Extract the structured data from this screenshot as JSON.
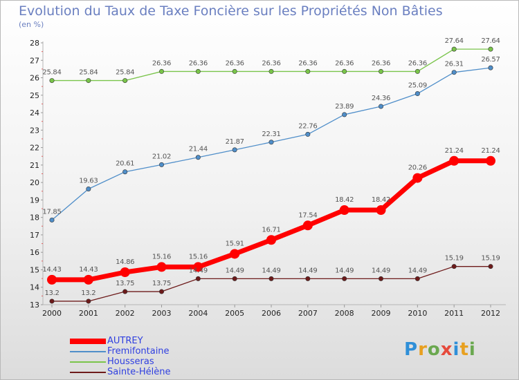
{
  "header": {
    "title": "Evolution du Taux de Taxe Foncière sur les Propriétés Non Bâties",
    "unit": "(en %)"
  },
  "brand": {
    "text": "Proxiti",
    "letter_colors": [
      "#2f8fd8",
      "#e8a020",
      "#6aa84f",
      "#e64a3c",
      "#2f8fd8",
      "#e8a020",
      "#6aa84f"
    ]
  },
  "chart_data": {
    "type": "line",
    "title": "Evolution du Taux de Taxe Foncière sur les Propriétés Non Bâties",
    "ylabel": "(en %)",
    "xlabel": "",
    "ylim": [
      13,
      28
    ],
    "yticks": [
      13,
      14,
      15,
      16,
      17,
      18,
      19,
      20,
      21,
      22,
      23,
      24,
      25,
      26,
      27,
      28
    ],
    "grid": false,
    "legend_position": "bottom-left",
    "x": [
      "2000",
      "2001",
      "2002",
      "2003",
      "2004",
      "2005",
      "2006",
      "2007",
      "2008",
      "2009",
      "2010",
      "2011",
      "2012"
    ],
    "series": [
      {
        "name": "AUTREY",
        "color": "#ff0000",
        "emphasis": true,
        "values": [
          14.43,
          14.43,
          14.86,
          15.16,
          15.16,
          15.91,
          16.71,
          17.54,
          18.42,
          18.42,
          20.26,
          21.24,
          21.24
        ],
        "labels": [
          "14.43",
          "14.43",
          "14.86",
          "15.16",
          "15.16",
          "15.91",
          "16.71",
          "17.54",
          "18.42",
          "18.42",
          "20.26",
          "21.24",
          "21.24"
        ]
      },
      {
        "name": "Fremifontaine",
        "color": "#4f8ec9",
        "emphasis": false,
        "values": [
          17.85,
          19.63,
          20.61,
          21.02,
          21.44,
          21.87,
          22.31,
          22.76,
          23.89,
          24.36,
          25.09,
          26.31,
          26.57
        ],
        "labels": [
          "17.85",
          "19.63",
          "20.61",
          "21.02",
          "21.44",
          "21.87",
          "22.31",
          "22.76",
          "23.89",
          "24.36",
          "25.09",
          "26.31",
          "26.57"
        ]
      },
      {
        "name": "Housseras",
        "color": "#79c44a",
        "emphasis": false,
        "values": [
          25.84,
          25.84,
          25.84,
          26.36,
          26.36,
          26.36,
          26.36,
          26.36,
          26.36,
          26.36,
          26.36,
          27.64,
          27.64
        ],
        "labels": [
          "25.84",
          "25.84",
          "25.84",
          "26.36",
          "26.36",
          "26.36",
          "26.36",
          "26.36",
          "26.36",
          "26.36",
          "26.36",
          "27.64",
          "27.64"
        ]
      },
      {
        "name": "Sainte-Hélène",
        "color": "#6d1a1a",
        "emphasis": false,
        "values": [
          13.2,
          13.2,
          13.75,
          13.75,
          14.49,
          14.49,
          14.49,
          14.49,
          14.49,
          14.49,
          14.49,
          15.19,
          15.19
        ],
        "labels": [
          "13.2",
          "13.2",
          "13.75",
          "13.75",
          "14.49",
          "14.49",
          "14.49",
          "14.49",
          "14.49",
          "14.49",
          "14.49",
          "15.19",
          "15.19"
        ]
      }
    ]
  }
}
